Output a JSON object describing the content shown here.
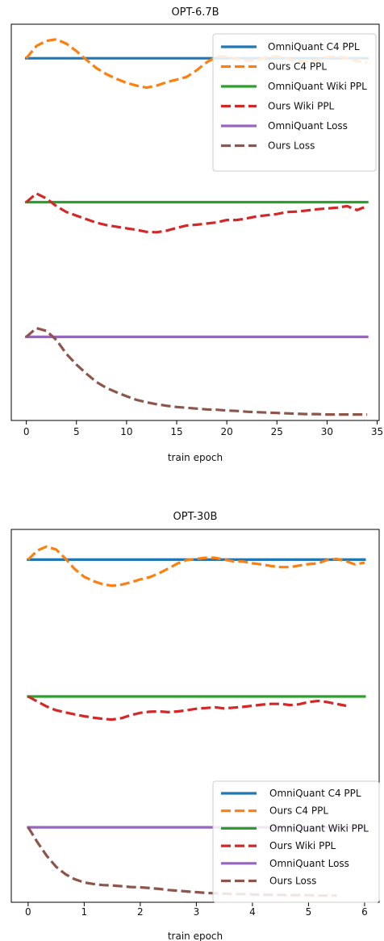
{
  "chart_data": [
    {
      "type": "line",
      "title": "OPT-6.7B",
      "xlabel": "train epoch",
      "ylabel": "",
      "xlim": [
        -1.5,
        35.2
      ],
      "xticks": [
        0,
        5,
        10,
        15,
        20,
        25,
        30,
        35
      ],
      "xtick_labels": [
        "0",
        "5",
        "10",
        "15",
        "20",
        "25",
        "30",
        "35"
      ],
      "y_ticks_shown": false,
      "grid": false,
      "legend_position": "top-right",
      "series": [
        {
          "name": "OmniQuant C4 PPL",
          "color": "#1f77b4",
          "style": "solid",
          "x": [
            0,
            34
          ],
          "y": [
            0.914,
            0.914
          ]
        },
        {
          "name": "Ours C4 PPL",
          "color": "#ff7f0e",
          "style": "dashed",
          "x": [
            0,
            1,
            2,
            3,
            4,
            5,
            6,
            7,
            8,
            9,
            10,
            11,
            12,
            13,
            14,
            15,
            16,
            17,
            18,
            19,
            20,
            21,
            22,
            23,
            24,
            25,
            26,
            27,
            28,
            29,
            30,
            31,
            32,
            33,
            34
          ],
          "y": [
            0.914,
            0.945,
            0.958,
            0.962,
            0.951,
            0.932,
            0.91,
            0.889,
            0.874,
            0.862,
            0.852,
            0.845,
            0.84,
            0.845,
            0.854,
            0.86,
            0.867,
            0.884,
            0.904,
            0.918,
            0.919,
            0.912,
            0.908,
            0.91,
            0.917,
            0.919,
            0.913,
            0.907,
            0.906,
            0.91,
            0.917,
            0.919,
            0.914,
            0.907,
            0.903
          ]
        },
        {
          "name": "OmniQuant Wiki PPL",
          "color": "#2ca02c",
          "style": "solid",
          "x": [
            0,
            34
          ],
          "y": [
            0.551,
            0.551
          ]
        },
        {
          "name": "Ours Wiki PPL",
          "color": "#d62728",
          "style": "dashed",
          "x": [
            0,
            1,
            2,
            3,
            4,
            5,
            6,
            7,
            8,
            9,
            10,
            11,
            12,
            13,
            14,
            15,
            16,
            17,
            18,
            19,
            20,
            21,
            22,
            23,
            24,
            25,
            26,
            27,
            28,
            29,
            30,
            31,
            32,
            33,
            34
          ],
          "y": [
            0.551,
            0.573,
            0.56,
            0.541,
            0.526,
            0.517,
            0.508,
            0.499,
            0.493,
            0.489,
            0.485,
            0.481,
            0.476,
            0.475,
            0.479,
            0.486,
            0.492,
            0.494,
            0.497,
            0.5,
            0.506,
            0.506,
            0.51,
            0.515,
            0.518,
            0.521,
            0.526,
            0.527,
            0.53,
            0.533,
            0.535,
            0.537,
            0.541,
            0.531,
            0.541
          ]
        },
        {
          "name": "OmniQuant Loss",
          "color": "#9467bd",
          "style": "solid",
          "x": [
            0,
            34
          ],
          "y": [
            0.211,
            0.211
          ]
        },
        {
          "name": "Ours Loss",
          "color": "#8c564b",
          "style": "dashed",
          "x": [
            0,
            1,
            2,
            3,
            4,
            5,
            6,
            7,
            8,
            9,
            10,
            11,
            12,
            13,
            14,
            15,
            16,
            17,
            18,
            19,
            20,
            21,
            22,
            23,
            24,
            25,
            26,
            27,
            28,
            29,
            30,
            31,
            32,
            33,
            34
          ],
          "y": [
            0.211,
            0.233,
            0.226,
            0.203,
            0.168,
            0.141,
            0.118,
            0.097,
            0.082,
            0.071,
            0.061,
            0.052,
            0.046,
            0.041,
            0.037,
            0.034,
            0.032,
            0.03,
            0.028,
            0.027,
            0.025,
            0.024,
            0.022,
            0.021,
            0.02,
            0.019,
            0.018,
            0.017,
            0.016,
            0.016,
            0.015,
            0.015,
            0.015,
            0.015,
            0.015
          ]
        }
      ]
    },
    {
      "type": "line",
      "title": "OPT-30B",
      "xlabel": "train epoch",
      "ylabel": "",
      "xlim": [
        -0.3,
        6.26
      ],
      "xticks": [
        0,
        1,
        2,
        3,
        4,
        5,
        6
      ],
      "xtick_labels": [
        "0",
        "1",
        "2",
        "3",
        "4",
        "5",
        "6"
      ],
      "y_ticks_shown": false,
      "grid": false,
      "legend_position": "lower-right",
      "series": [
        {
          "name": "OmniQuant C4 PPL",
          "color": "#1f77b4",
          "style": "solid",
          "x": [
            0,
            6
          ],
          "y": [
            0.919,
            0.919
          ]
        },
        {
          "name": "Ours C4 PPL",
          "color": "#ff7f0e",
          "style": "dashed",
          "x": [
            0,
            0.17,
            0.33,
            0.5,
            0.67,
            0.83,
            1.0,
            1.17,
            1.33,
            1.5,
            1.67,
            1.83,
            2.0,
            2.17,
            2.33,
            2.5,
            2.67,
            2.83,
            3.0,
            3.17,
            3.33,
            3.5,
            3.67,
            3.83,
            4.0,
            4.17,
            4.33,
            4.5,
            4.67,
            4.83,
            5.0,
            5.17,
            5.33,
            5.5,
            5.67,
            5.83,
            6.0
          ],
          "y": [
            0.919,
            0.944,
            0.954,
            0.946,
            0.921,
            0.894,
            0.873,
            0.861,
            0.853,
            0.849,
            0.852,
            0.858,
            0.866,
            0.872,
            0.882,
            0.895,
            0.909,
            0.918,
            0.921,
            0.924,
            0.924,
            0.919,
            0.914,
            0.914,
            0.909,
            0.906,
            0.902,
            0.899,
            0.899,
            0.903,
            0.907,
            0.909,
            0.918,
            0.921,
            0.915,
            0.906,
            0.911
          ]
        },
        {
          "name": "OmniQuant Wiki PPL",
          "color": "#2ca02c",
          "style": "solid",
          "x": [
            0,
            6
          ],
          "y": [
            0.552,
            0.552
          ]
        },
        {
          "name": "Ours Wiki PPL",
          "color": "#d62728",
          "style": "dashed",
          "x": [
            0,
            0.17,
            0.33,
            0.5,
            0.67,
            0.83,
            1.0,
            1.17,
            1.33,
            1.5,
            1.67,
            1.83,
            2.0,
            2.17,
            2.33,
            2.5,
            2.67,
            2.83,
            3.0,
            3.17,
            3.33,
            3.5,
            3.67,
            3.83,
            4.0,
            4.17,
            4.33,
            4.5,
            4.67,
            4.83,
            5.0,
            5.17,
            5.33,
            5.5,
            5.67
          ],
          "y": [
            0.552,
            0.538,
            0.525,
            0.515,
            0.509,
            0.504,
            0.499,
            0.495,
            0.492,
            0.49,
            0.494,
            0.502,
            0.508,
            0.511,
            0.512,
            0.51,
            0.512,
            0.515,
            0.519,
            0.521,
            0.523,
            0.52,
            0.522,
            0.524,
            0.527,
            0.53,
            0.532,
            0.532,
            0.529,
            0.531,
            0.537,
            0.54,
            0.537,
            0.532,
            0.527
          ]
        },
        {
          "name": "OmniQuant Loss",
          "color": "#9467bd",
          "style": "solid",
          "x": [
            0,
            6
          ],
          "y": [
            0.201,
            0.201
          ]
        },
        {
          "name": "Ours Loss",
          "color": "#8c564b",
          "style": "dashed",
          "x": [
            0,
            0.17,
            0.33,
            0.5,
            0.67,
            0.83,
            1.0,
            1.17,
            1.33,
            1.5,
            1.67,
            1.83,
            2.0,
            2.17,
            2.33,
            2.5,
            2.67,
            2.83,
            3.0,
            3.17,
            3.33,
            3.5,
            3.67,
            3.83,
            4.0,
            4.17,
            4.33,
            4.5,
            4.67,
            4.83,
            5.0,
            5.17,
            5.33,
            5.5
          ],
          "y": [
            0.201,
            0.16,
            0.125,
            0.095,
            0.075,
            0.062,
            0.053,
            0.049,
            0.046,
            0.045,
            0.043,
            0.041,
            0.04,
            0.038,
            0.036,
            0.033,
            0.031,
            0.029,
            0.027,
            0.025,
            0.024,
            0.023,
            0.022,
            0.022,
            0.021,
            0.02,
            0.02,
            0.02,
            0.019,
            0.019,
            0.019,
            0.018,
            0.018,
            0.018
          ]
        }
      ]
    }
  ]
}
